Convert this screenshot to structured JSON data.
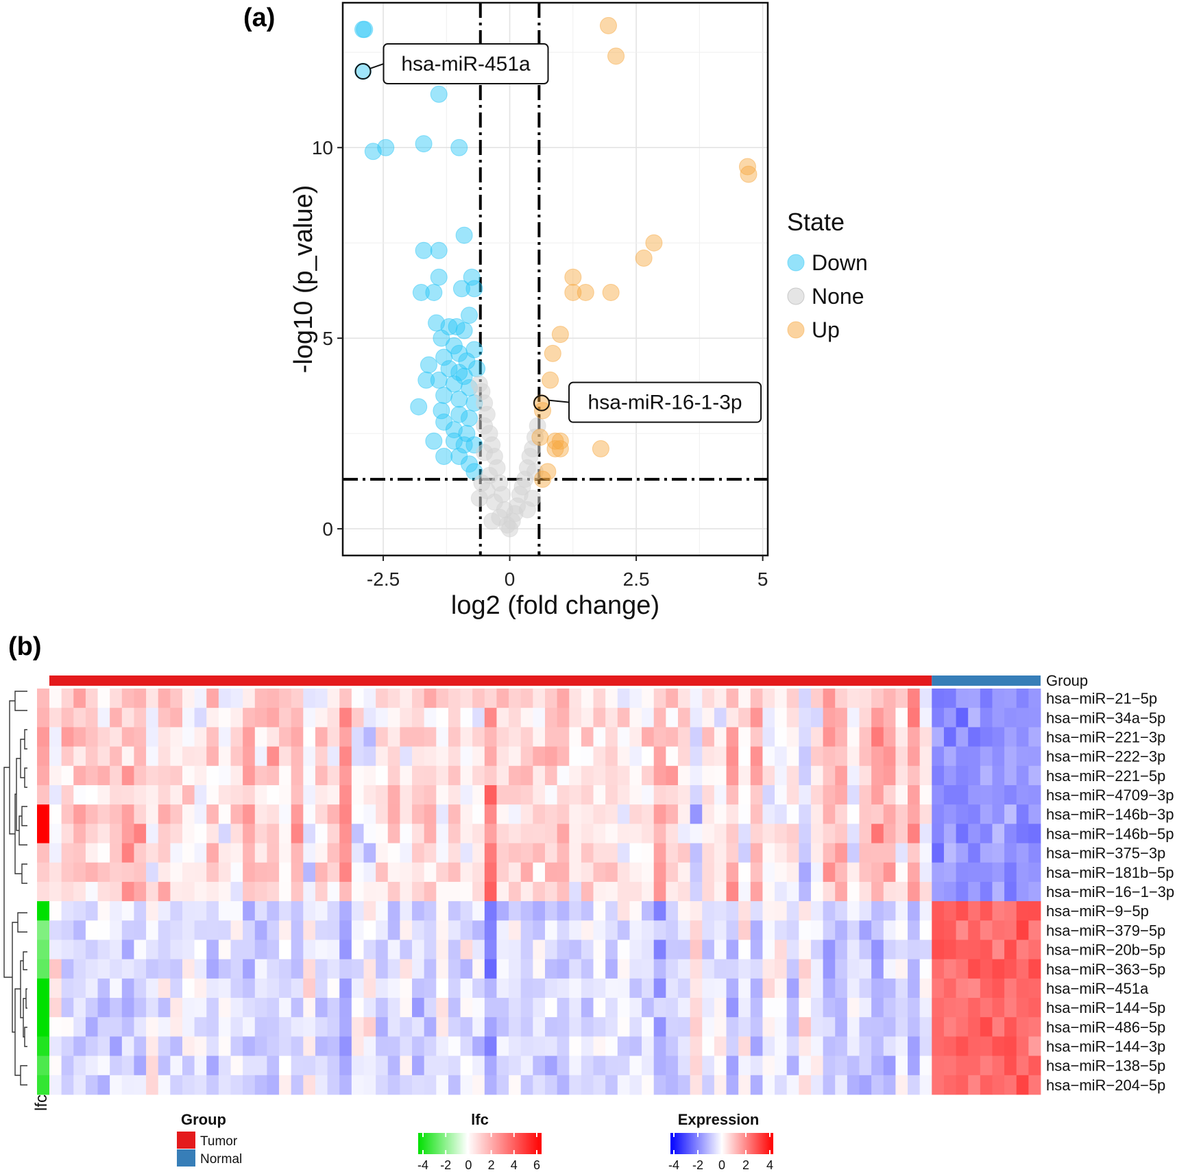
{
  "chart_data": [
    {
      "type": "scatter",
      "panel_label": "(a)",
      "title": "",
      "xlabel": "log2 (fold change)",
      "ylabel": "-log10 (p_value)",
      "xlim": [
        -3.3,
        5.1
      ],
      "ylim": [
        -0.7,
        13.8
      ],
      "x_ticks": [
        -2.5,
        0,
        2.5,
        5
      ],
      "x_tick_labels": [
        "-2.5",
        "0",
        "2.5",
        "5"
      ],
      "y_ticks": [
        0,
        5,
        10
      ],
      "y_tick_labels": [
        "0",
        "5",
        "10"
      ],
      "grid": true,
      "thresholds": {
        "x": [
          -0.58,
          0.58
        ],
        "y": 1.3
      },
      "legend": {
        "title": "State",
        "position": "right",
        "entries": [
          {
            "label": "Down",
            "color": "#29c5f6"
          },
          {
            "label": "None",
            "color": "#d3d3d3"
          },
          {
            "label": "Up",
            "color": "#f7a840"
          }
        ]
      },
      "annotations": [
        {
          "label": "hsa-miR-451a",
          "x": -2.9,
          "y": 12.0
        },
        {
          "label": "hsa-miR-16-1-3p",
          "x": 0.63,
          "y": 3.3
        }
      ],
      "series": [
        {
          "name": "Down",
          "color": "#29c5f6",
          "points": [
            [
              -2.9,
              13.1
            ],
            [
              -2.87,
              13.1
            ],
            [
              -2.9,
              12.0
            ],
            [
              -1.4,
              11.4
            ],
            [
              -2.7,
              9.9
            ],
            [
              -2.45,
              10.0
            ],
            [
              -1.7,
              10.1
            ],
            [
              -1.0,
              10.0
            ],
            [
              -0.9,
              7.7
            ],
            [
              -1.7,
              7.3
            ],
            [
              -1.4,
              7.3
            ],
            [
              -1.4,
              6.6
            ],
            [
              -1.75,
              6.2
            ],
            [
              -1.5,
              6.2
            ],
            [
              -0.95,
              6.3
            ],
            [
              -0.75,
              6.6
            ],
            [
              -0.7,
              6.3
            ],
            [
              -0.8,
              5.6
            ],
            [
              -1.45,
              5.4
            ],
            [
              -1.2,
              5.3
            ],
            [
              -1.05,
              5.3
            ],
            [
              -0.9,
              5.2
            ],
            [
              -1.35,
              5.0
            ],
            [
              -1.1,
              4.8
            ],
            [
              -0.7,
              4.7
            ],
            [
              -1.3,
              4.5
            ],
            [
              -1.0,
              4.6
            ],
            [
              -0.85,
              4.4
            ],
            [
              -1.6,
              4.3
            ],
            [
              -1.2,
              4.2
            ],
            [
              -1.0,
              4.1
            ],
            [
              -0.65,
              4.2
            ],
            [
              -0.9,
              4.0
            ],
            [
              -1.65,
              3.9
            ],
            [
              -1.4,
              3.9
            ],
            [
              -1.1,
              3.8
            ],
            [
              -0.8,
              3.7
            ],
            [
              -1.3,
              3.5
            ],
            [
              -1.0,
              3.4
            ],
            [
              -0.7,
              3.3
            ],
            [
              -1.8,
              3.2
            ],
            [
              -1.35,
              3.1
            ],
            [
              -1.0,
              3.0
            ],
            [
              -0.8,
              2.9
            ],
            [
              -1.3,
              2.8
            ],
            [
              -1.1,
              2.6
            ],
            [
              -0.85,
              2.5
            ],
            [
              -1.5,
              2.3
            ],
            [
              -1.1,
              2.3
            ],
            [
              -0.9,
              2.2
            ],
            [
              -0.7,
              2.2
            ],
            [
              -1.3,
              1.9
            ],
            [
              -1.0,
              1.9
            ],
            [
              -0.8,
              1.7
            ],
            [
              -0.7,
              1.5
            ]
          ]
        },
        {
          "name": "None",
          "color": "#d3d3d3",
          "points": [
            [
              -0.6,
              3.8
            ],
            [
              -0.55,
              3.6
            ],
            [
              -0.5,
              3.3
            ],
            [
              -0.45,
              3.0
            ],
            [
              -0.5,
              2.7
            ],
            [
              -0.4,
              2.5
            ],
            [
              -0.35,
              2.2
            ],
            [
              -0.5,
              2.0
            ],
            [
              -0.3,
              1.9
            ],
            [
              -0.25,
              1.6
            ],
            [
              -0.4,
              1.4
            ],
            [
              -0.2,
              1.2
            ],
            [
              -0.45,
              1.0
            ],
            [
              -0.15,
              0.9
            ],
            [
              -0.3,
              0.7
            ],
            [
              -0.1,
              0.5
            ],
            [
              -0.2,
              0.3
            ],
            [
              -0.05,
              0.1
            ],
            [
              0.0,
              0.0
            ],
            [
              0.05,
              0.2
            ],
            [
              0.1,
              0.4
            ],
            [
              0.15,
              0.6
            ],
            [
              0.2,
              0.9
            ],
            [
              0.25,
              1.1
            ],
            [
              0.3,
              1.3
            ],
            [
              0.35,
              1.6
            ],
            [
              0.4,
              1.9
            ],
            [
              0.45,
              2.1
            ],
            [
              0.5,
              2.4
            ],
            [
              0.55,
              2.7
            ],
            [
              -0.55,
              1.2
            ],
            [
              -0.6,
              0.8
            ],
            [
              0.35,
              0.5
            ],
            [
              0.45,
              0.8
            ],
            [
              -0.35,
              0.2
            ],
            [
              0.5,
              1.5
            ]
          ]
        },
        {
          "name": "Up",
          "color": "#f7a840",
          "points": [
            [
              1.95,
              13.2
            ],
            [
              2.1,
              12.4
            ],
            [
              4.7,
              9.5
            ],
            [
              4.72,
              9.3
            ],
            [
              2.85,
              7.5
            ],
            [
              2.65,
              7.1
            ],
            [
              1.25,
              6.6
            ],
            [
              1.25,
              6.2
            ],
            [
              1.5,
              6.2
            ],
            [
              2.0,
              6.2
            ],
            [
              1.0,
              5.1
            ],
            [
              0.85,
              4.6
            ],
            [
              0.8,
              3.9
            ],
            [
              0.63,
              3.3
            ],
            [
              0.65,
              3.1
            ],
            [
              0.6,
              2.4
            ],
            [
              0.9,
              2.3
            ],
            [
              1.0,
              2.3
            ],
            [
              0.9,
              2.1
            ],
            [
              1.0,
              2.1
            ],
            [
              1.8,
              2.1
            ],
            [
              0.75,
              1.5
            ],
            [
              0.65,
              1.3
            ]
          ]
        }
      ]
    },
    {
      "type": "heatmap",
      "panel_label": "(b)",
      "annotation_track_label": "Group",
      "row_annotation_label": "lfc",
      "samples": {
        "tumor": 73,
        "normal": 9
      },
      "rows": [
        "hsa−miR−21−5p",
        "hsa−miR−34a−5p",
        "hsa−miR−221−3p",
        "hsa−miR−222−3p",
        "hsa−miR−221−5p",
        "hsa−miR−4709−3p",
        "hsa−miR−146b−3p",
        "hsa−miR−146b−5p",
        "hsa−miR−375−3p",
        "hsa−miR−181b−5p",
        "hsa−miR−16−1−3p",
        "hsa−miR−9−5p",
        "hsa−miR−379−5p",
        "hsa−miR−20b−5p",
        "hsa−miR−363−5p",
        "hsa−miR−451a",
        "hsa−miR−144−5p",
        "hsa−miR−486−5p",
        "hsa−miR−144−3p",
        "hsa−miR−138−5p",
        "hsa−miR−204−5p"
      ],
      "lfc": [
        1.6,
        1.8,
        2.4,
        2.2,
        2.0,
        1.4,
        6.0,
        6.0,
        1.5,
        1.2,
        0.8,
        -4.0,
        -2.0,
        -2.3,
        -2.5,
        -4.0,
        -4.0,
        -4.0,
        -3.5,
        -2.8,
        -3.2
      ],
      "group_mean_expression": {
        "up_rows_tumor": 0.5,
        "up_rows_normal": -1.8,
        "down_rows_tumor": -0.5,
        "down_rows_normal": 2.5
      },
      "legends": {
        "group": {
          "title": "Group",
          "entries": [
            {
              "label": "Tumor",
              "color": "#e41a1c"
            },
            {
              "label": "Normal",
              "color": "#377eb8"
            }
          ]
        },
        "lfc": {
          "title": "lfc",
          "ticks": [
            "-4",
            "-2",
            "0",
            "2",
            "4",
            "6"
          ],
          "range": [
            -4,
            6
          ]
        },
        "expression": {
          "title": "Expression",
          "ticks": [
            "-4",
            "-2",
            "0",
            "2",
            "4"
          ],
          "range": [
            -4,
            4
          ]
        }
      }
    }
  ]
}
